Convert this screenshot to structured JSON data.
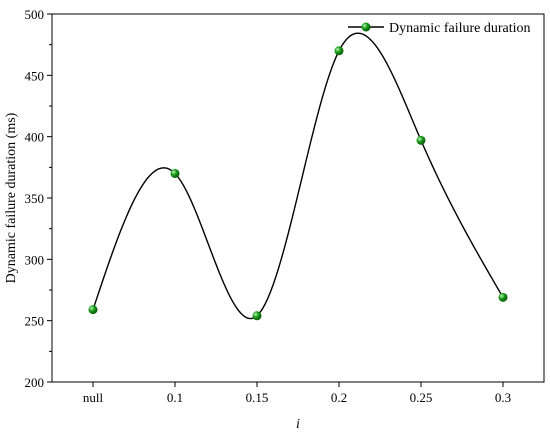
{
  "chart_data": {
    "type": "scatter",
    "title": "",
    "xlabel": "i",
    "ylabel": "Dynamic failure duration (ms)",
    "categories": [
      "null",
      "0.1",
      "0.15",
      "0.2",
      "0.25",
      "0.3"
    ],
    "yticks": [
      "200",
      "250",
      "300",
      "350",
      "400",
      "450",
      "500"
    ],
    "ylim": [
      200,
      500
    ],
    "grid": false,
    "legend_position": "top-right",
    "series": [
      {
        "name": "Dynamic failure duration",
        "values": [
          259,
          370,
          254,
          470,
          397,
          269
        ],
        "marker_color": "#1aa01a",
        "line_color": "#000000",
        "fit_line": "smooth spline"
      }
    ]
  }
}
